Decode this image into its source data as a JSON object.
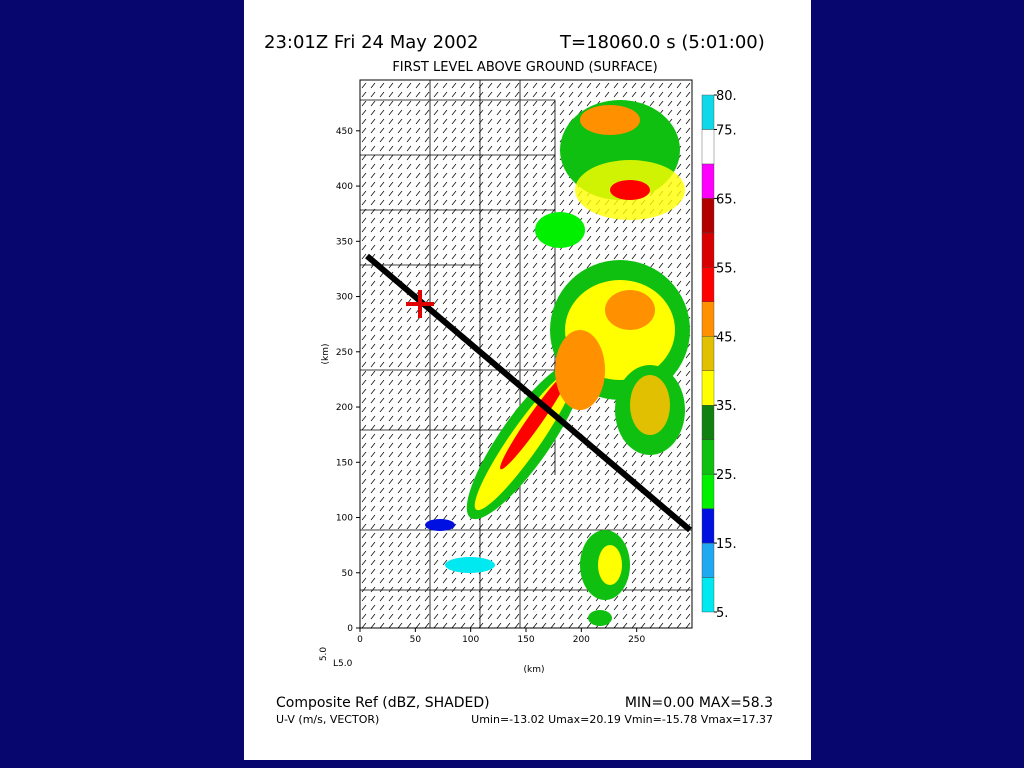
{
  "header": {
    "time": "23:01Z Fri 24 May 2002",
    "model_time": "T=18060.0 s (5:01:00)",
    "subtitle": "FIRST LEVEL ABOVE GROUND (SURFACE)"
  },
  "plot": {
    "xlim": [
      0,
      300
    ],
    "ylim": [
      0,
      496
    ],
    "xticks": [
      0,
      50,
      100,
      150,
      200,
      250
    ],
    "yticks": [
      0,
      50,
      100,
      150,
      200,
      250,
      300,
      350,
      400,
      450
    ],
    "xlabel": "(km)",
    "ylabel": "(km)",
    "level": "5.0",
    "level_label": "L5.0"
  },
  "colorbar": {
    "range": [
      5,
      80
    ],
    "ticks": [
      {
        "value": 80,
        "label": "80."
      },
      {
        "value": 75,
        "label": "75."
      },
      {
        "value": 65,
        "label": "65."
      },
      {
        "value": 55,
        "label": "55."
      },
      {
        "value": 45,
        "label": "45."
      },
      {
        "value": 35,
        "label": "35."
      },
      {
        "value": 25,
        "label": "25."
      },
      {
        "value": 15,
        "label": "15."
      },
      {
        "value": 5,
        "label": "5."
      }
    ],
    "colors": [
      "#00e8f0",
      "#20a8f0",
      "#0010e0",
      "#00f000",
      "#10c010",
      "#108010",
      "#ffff00",
      "#e0c000",
      "#ff9000",
      "#ff0000",
      "#d80000",
      "#b00000",
      "#ff00ff",
      "#ffffff",
      "#10d8e8"
    ]
  },
  "footer": {
    "field": "Composite Ref (dBZ, SHADED)",
    "range": "MIN=0.00 MAX=58.3",
    "vector": "U-V (m/s, VECTOR)",
    "vector_stats": "Umin=-13.02 Umax=20.19 Vmin=-15.78 Vmax=17.37"
  }
}
